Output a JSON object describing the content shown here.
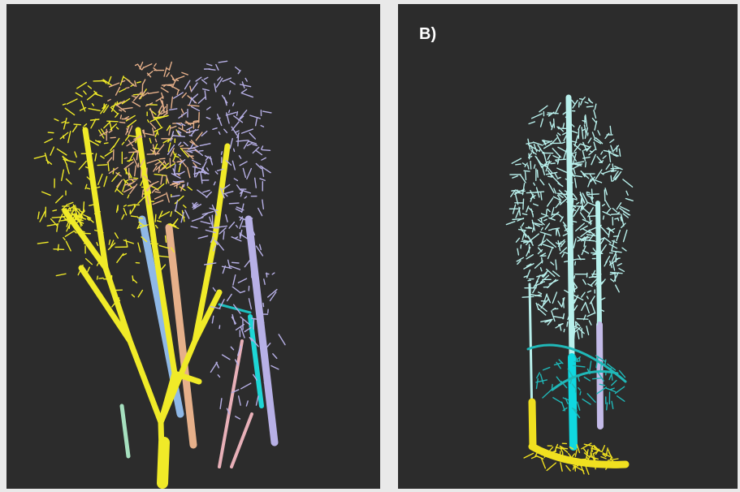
{
  "right_panel": {
    "label": "B)"
  }
}
